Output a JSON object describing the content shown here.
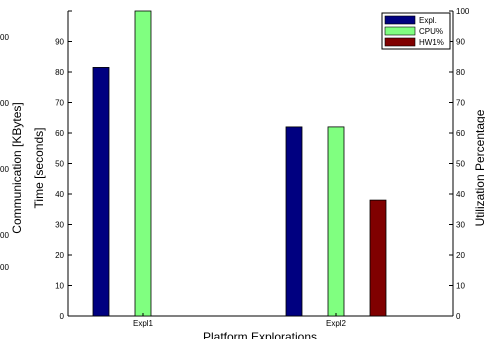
{
  "chart_data": {
    "type": "bar",
    "categories": [
      "Expl1",
      "Expl2"
    ],
    "series": [
      {
        "name": "Expl.",
        "color": "#000080",
        "values": [
          81.5,
          62
        ]
      },
      {
        "name": "CPU%",
        "color": "#80ff80",
        "values": [
          100,
          62
        ]
      },
      {
        "name": "HW1%",
        "color": "#800000",
        "values": [
          0,
          38
        ]
      }
    ],
    "xlabel": "Platform Explorations",
    "ylabel_left_outer": "Communication [KBytes]",
    "ylabel_left_inner": "Time [seconds]",
    "ylabel_right": "Utilization Percentage",
    "ylim": [
      0,
      100
    ],
    "yticks": [
      0,
      10,
      20,
      30,
      40,
      50,
      60,
      70,
      80,
      90,
      100
    ],
    "left_inner_tick_labels": [
      "0",
      "10",
      "20",
      "30",
      "40",
      "50",
      "60",
      "70",
      "80",
      "90"
    ],
    "right_tick_labels": [
      "0",
      "10",
      "20",
      "30",
      "40",
      "50",
      "60",
      "70",
      "80",
      "90",
      "100"
    ],
    "left_outer_tick_labels": [
      "00",
      "00",
      "00",
      "00",
      "00"
    ],
    "legend_position": "top-right",
    "grid": false
  }
}
